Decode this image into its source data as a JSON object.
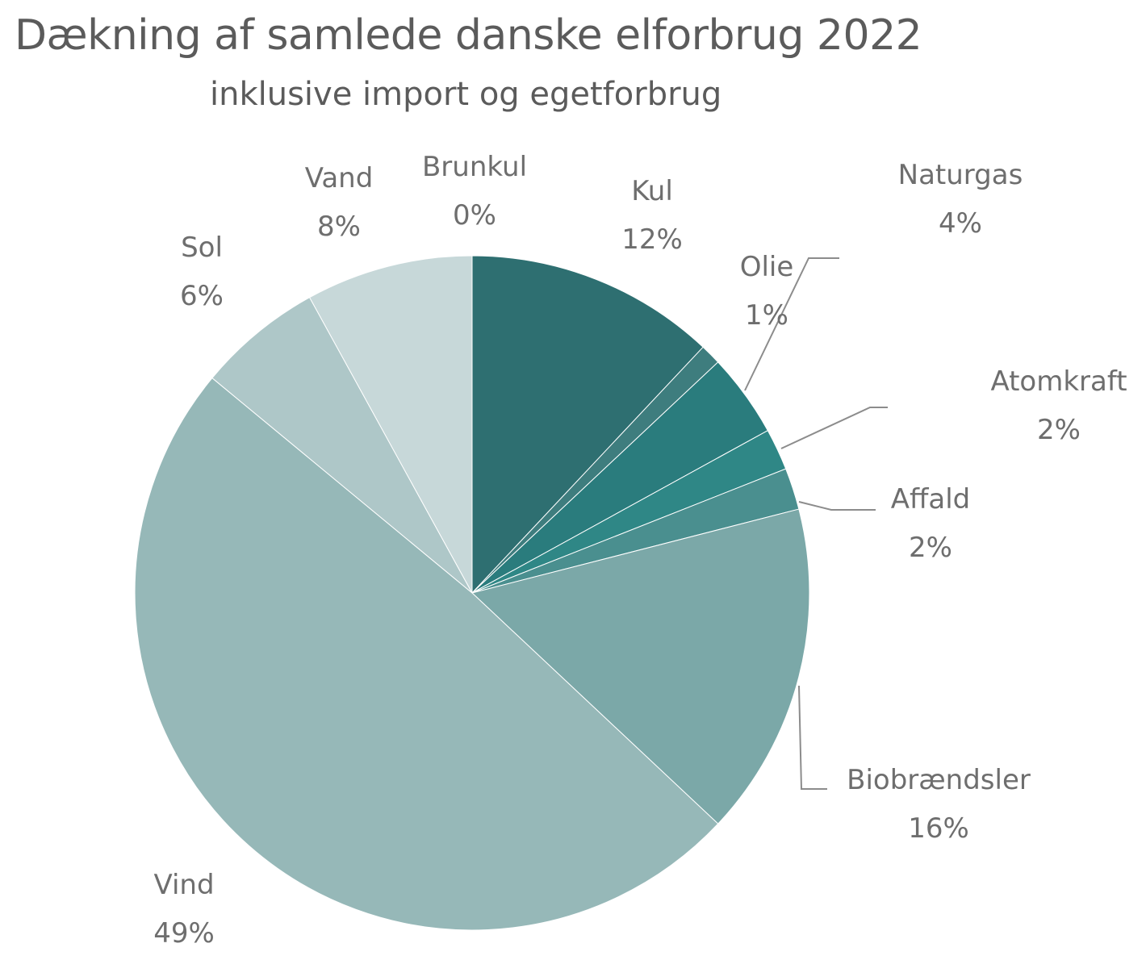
{
  "chart_data": {
    "type": "pie",
    "title": "Dækning af samlede danske elforbrug 2022",
    "subtitle": "inklusive import og egetforbrug",
    "slices": [
      {
        "name": "Brunkul",
        "value": 0,
        "label": "0%",
        "color": "#5a8a8a"
      },
      {
        "name": "Kul",
        "value": 12,
        "label": "12%",
        "color": "#2e6f71"
      },
      {
        "name": "Olie",
        "value": 1,
        "label": "1%",
        "color": "#3e7d7e"
      },
      {
        "name": "Naturgas",
        "value": 4,
        "label": "4%",
        "color": "#2a7c7d"
      },
      {
        "name": "Atomkraft",
        "value": 2,
        "label": "2%",
        "color": "#2f8786"
      },
      {
        "name": "Affald",
        "value": 2,
        "label": "2%",
        "color": "#4a8f8f"
      },
      {
        "name": "Biobrændsler",
        "value": 16,
        "label": "16%",
        "color": "#7ba8a8"
      },
      {
        "name": "Vind",
        "value": 49,
        "label": "49%",
        "color": "#96b8b8"
      },
      {
        "name": "Sol",
        "value": 6,
        "label": "6%",
        "color": "#aec7c8"
      },
      {
        "name": "Vand",
        "value": 8,
        "label": "8%",
        "color": "#c7d8d9"
      }
    ],
    "legend": "none"
  }
}
